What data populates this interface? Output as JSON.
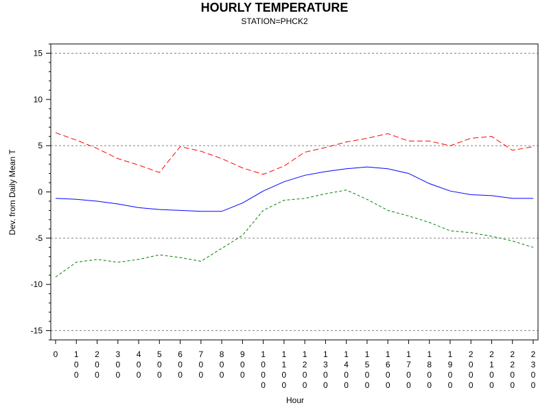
{
  "chart_data": {
    "type": "line",
    "title": "HOURLY TEMPERATURE",
    "subtitle": "STATION=PHCK2",
    "xlabel": "Hour",
    "ylabel": "Dev. from Daily Mean T",
    "x": [
      0,
      100,
      200,
      300,
      400,
      500,
      600,
      700,
      800,
      900,
      1000,
      1100,
      1200,
      1300,
      1400,
      1500,
      1600,
      1700,
      1800,
      1900,
      2000,
      2100,
      2200,
      2300
    ],
    "x_tick_labels": [
      "0",
      "100",
      "200",
      "300",
      "400",
      "500",
      "600",
      "700",
      "800",
      "900",
      "1000",
      "1100",
      "1200",
      "1300",
      "1400",
      "1500",
      "1600",
      "1700",
      "1800",
      "1900",
      "2000",
      "2100",
      "2200",
      "2300"
    ],
    "ylim": [
      -16,
      16
    ],
    "y_ticks": [
      -15,
      -10,
      -5,
      0,
      5,
      10,
      15
    ],
    "y_tick_labels": [
      "-15",
      "-10",
      "-5",
      "0",
      "5",
      "10",
      "15"
    ],
    "reference_lines": [
      -15,
      -5,
      5,
      15
    ],
    "grid": false,
    "series": [
      {
        "style": "dashed",
        "color": "#ff0000",
        "values": [
          6.4,
          5.6,
          4.7,
          3.6,
          2.9,
          2.1,
          4.9,
          4.4,
          3.6,
          2.6,
          1.9,
          2.8,
          4.3,
          4.8,
          5.4,
          5.8,
          6.3,
          5.5,
          5.5,
          5.0,
          5.8,
          6.0,
          4.5,
          4.9
        ]
      },
      {
        "style": "solid",
        "color": "#0000ff",
        "values": [
          -0.7,
          -0.8,
          -1.0,
          -1.3,
          -1.7,
          -1.9,
          -2.0,
          -2.1,
          -2.1,
          -1.2,
          0.1,
          1.1,
          1.8,
          2.2,
          2.5,
          2.7,
          2.5,
          2.0,
          0.9,
          0.1,
          -0.3,
          -0.4,
          -0.7,
          -0.7
        ]
      },
      {
        "style": "dashed",
        "color": "#008000",
        "values": [
          -9.2,
          -7.6,
          -7.3,
          -7.6,
          -7.3,
          -6.8,
          -7.1,
          -7.5,
          -6.1,
          -4.7,
          -2.0,
          -0.9,
          -0.7,
          -0.2,
          0.2,
          -0.8,
          -2.0,
          -2.6,
          -3.3,
          -4.2,
          -4.4,
          -4.8,
          -5.3,
          -6.0
        ]
      }
    ]
  }
}
